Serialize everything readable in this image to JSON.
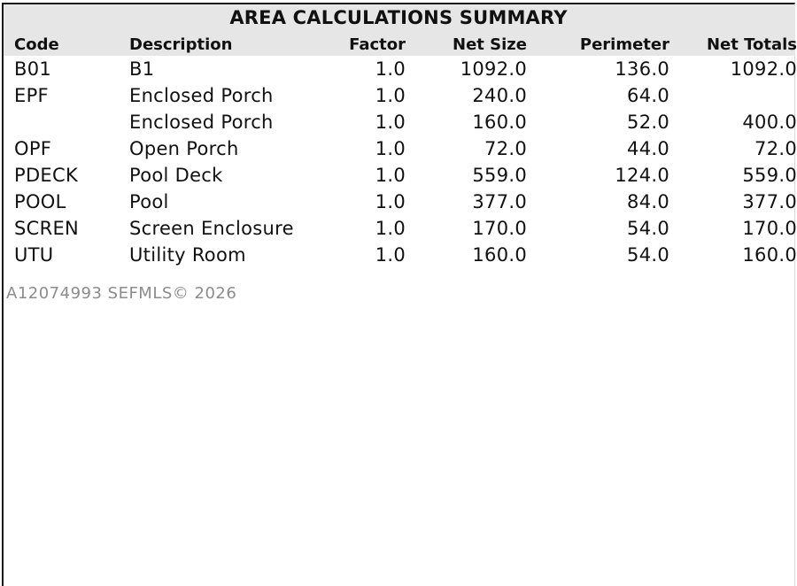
{
  "title": "AREA CALCULATIONS SUMMARY",
  "columns": [
    "Code",
    "Description",
    "Factor",
    "Net Size",
    "Perimeter",
    "Net Totals"
  ],
  "rows": [
    {
      "code": "B01",
      "description": "B1",
      "factor": "1.0",
      "net_size": "1092.0",
      "perimeter": "136.0",
      "net_total": "1092.0"
    },
    {
      "code": "EPF",
      "description": "Enclosed Porch",
      "factor": "1.0",
      "net_size": "240.0",
      "perimeter": "64.0",
      "net_total": ""
    },
    {
      "code": "",
      "description": "Enclosed Porch",
      "factor": "1.0",
      "net_size": "160.0",
      "perimeter": "52.0",
      "net_total": "400.0"
    },
    {
      "code": "OPF",
      "description": "Open Porch",
      "factor": "1.0",
      "net_size": "72.0",
      "perimeter": "44.0",
      "net_total": "72.0"
    },
    {
      "code": "PDECK",
      "description": "Pool Deck",
      "factor": "1.0",
      "net_size": "559.0",
      "perimeter": "124.0",
      "net_total": "559.0"
    },
    {
      "code": "POOL",
      "description": "Pool",
      "factor": "1.0",
      "net_size": "377.0",
      "perimeter": "84.0",
      "net_total": "377.0"
    },
    {
      "code": "SCREN",
      "description": "Screen Enclosure",
      "factor": "1.0",
      "net_size": "170.0",
      "perimeter": "54.0",
      "net_total": "170.0"
    },
    {
      "code": "UTU",
      "description": "Utility Room",
      "factor": "1.0",
      "net_size": "160.0",
      "perimeter": "54.0",
      "net_total": "160.0"
    }
  ],
  "watermark": "A12074993  SEFMLS© 2026",
  "colors": {
    "header_band": "#e6e6e6",
    "watermark": "#8c8c8c"
  }
}
